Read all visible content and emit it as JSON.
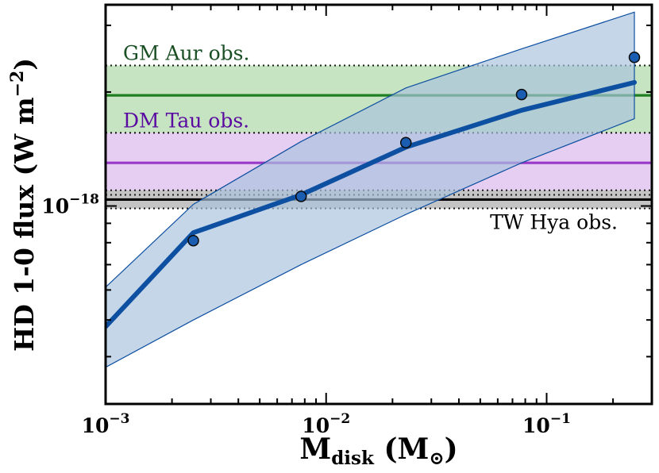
{
  "chart_data": {
    "type": "line",
    "title": "",
    "xlabel": {
      "main": "M",
      "sub": "disk",
      "unit_open": " (M",
      "unit_sub": "⊙",
      "unit_close": ")"
    },
    "ylabel": {
      "main": "HD 1-0 flux (W m",
      "sup": "−2",
      "close": ")"
    },
    "xscale": "log",
    "yscale": "log",
    "xlim": [
      0.001,
      0.3
    ],
    "ylim": [
      3e-19,
      3.4e-18
    ],
    "x_ticks": [
      {
        "value": 0.001,
        "base": "10",
        "exp": "−3"
      },
      {
        "value": 0.01,
        "base": "10",
        "exp": "−2"
      },
      {
        "value": 0.1,
        "base": "10",
        "exp": "−1"
      }
    ],
    "y_ticks": [
      {
        "value": 1e-18,
        "base": "10",
        "exp": "−18"
      }
    ],
    "model_line": {
      "name": "model",
      "color": "#0d4fa0",
      "x": [
        0.001,
        0.0025,
        0.0077,
        0.023,
        0.077,
        0.25
      ],
      "y": [
        4.8e-19,
        8.5e-19,
        1.07e-18,
        1.43e-18,
        1.79e-18,
        2.12e-18
      ]
    },
    "model_band": {
      "color": "#a9c2de",
      "x": [
        0.001,
        0.0025,
        0.0077,
        0.023,
        0.077,
        0.25
      ],
      "lower": [
        3.75e-19,
        5e-19,
        7e-19,
        9.5e-19,
        1.3e-18,
        1.7e-18
      ],
      "upper": [
        6.1e-19,
        1.01e-18,
        1.48e-18,
        2.05e-18,
        2.6e-18,
        3.25e-18
      ]
    },
    "points": {
      "name": "model points",
      "color": "#1b5db0",
      "x": [
        0.0025,
        0.0077,
        0.023,
        0.077,
        0.25
      ],
      "y": [
        8.1e-19,
        1.06e-18,
        1.47e-18,
        1.97e-18,
        2.47e-18
      ]
    },
    "observations": [
      {
        "label": "GM Aur obs.",
        "value": 1.96e-18,
        "low": 1.56e-18,
        "high": 2.35e-18,
        "line_color": "#1e8020",
        "fill": "#c6e3c2",
        "label_color": "#1a4f24",
        "label_pos": "above-left"
      },
      {
        "label": "DM Tau obs.",
        "value": 1.3e-18,
        "low": 1.07e-18,
        "high": 1.56e-18,
        "line_color": "#9a38c8",
        "fill": "#e6cdf2",
        "label_color": "#5a0aa0",
        "label_pos": "above-left"
      },
      {
        "label": "TW Hya obs.",
        "value": 1.04e-18,
        "low": 9.85e-19,
        "high": 1.1e-18,
        "line_color": "#000000",
        "fill": "#c4c4c4",
        "label_color": "#000000",
        "label_pos": "below-right"
      }
    ]
  }
}
